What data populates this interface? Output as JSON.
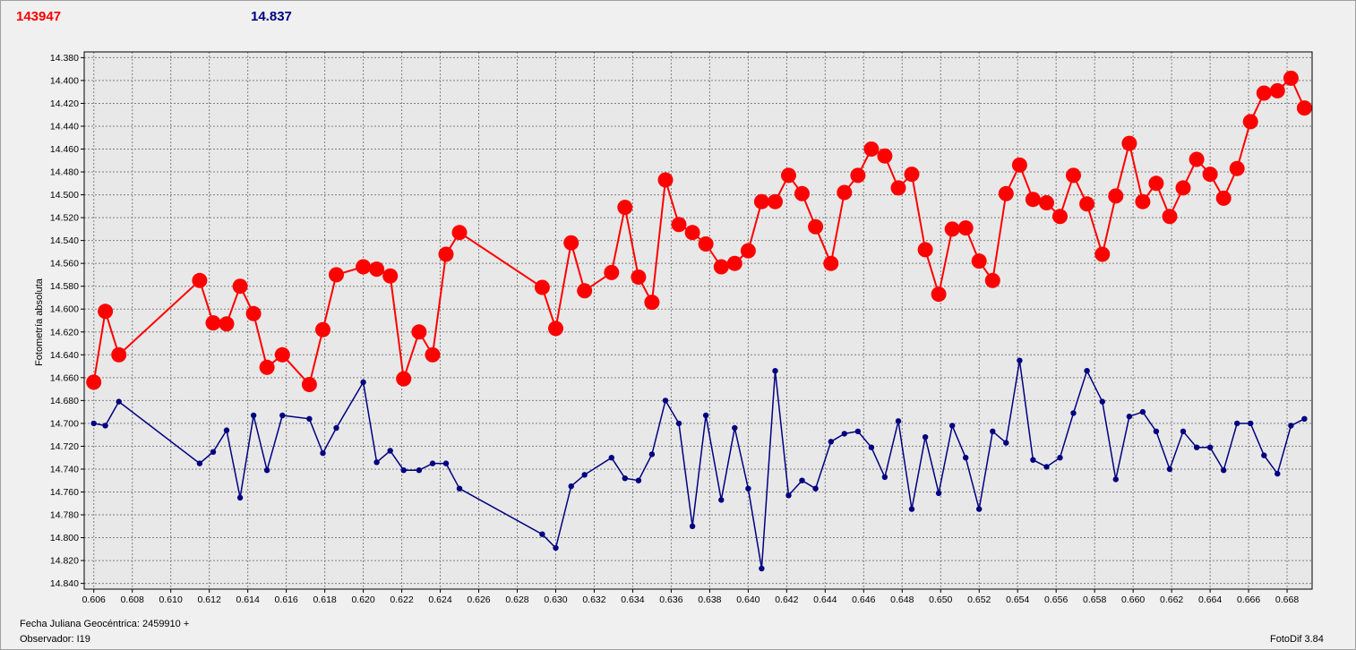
{
  "header": {
    "star_id": "143947",
    "comparison_value": "14.837"
  },
  "footer": {
    "julian_label": "Fecha Juliana Geocéntrica: 2459910 +",
    "observer_label": "Observador: I19",
    "version_label": "FotoDif 3.84"
  },
  "colors": {
    "target": "#ff0000",
    "comparison": "#000080",
    "grid": "#808080",
    "plot_bg": "#e8e8e8"
  },
  "chart_data": {
    "type": "line",
    "ylabel": "Fotometría absoluta",
    "xlabel": "Fecha Juliana Geocéntrica: 2459910 +",
    "xlim": [
      0.6055,
      0.6693
    ],
    "ylim": [
      14.845,
      14.375
    ],
    "y_inverted": true,
    "grid": true,
    "x_ticks": [
      "0.606",
      "0.608",
      "0.610",
      "0.612",
      "0.614",
      "0.616",
      "0.618",
      "0.620",
      "0.622",
      "0.624",
      "0.626",
      "0.628",
      "0.630",
      "0.632",
      "0.634",
      "0.636",
      "0.638",
      "0.640",
      "0.642",
      "0.644",
      "0.646",
      "0.648",
      "0.650",
      "0.652",
      "0.654",
      "0.656",
      "0.658",
      "0.660",
      "0.662",
      "0.664",
      "0.666",
      "0.668"
    ],
    "y_ticks": [
      "14.380",
      "14.400",
      "14.420",
      "14.440",
      "14.460",
      "14.480",
      "14.500",
      "14.520",
      "14.540",
      "14.560",
      "14.580",
      "14.600",
      "14.620",
      "14.640",
      "14.660",
      "14.680",
      "14.700",
      "14.720",
      "14.740",
      "14.760",
      "14.780",
      "14.800",
      "14.820",
      "14.840"
    ],
    "x": [
      0.606,
      0.6066,
      0.6073,
      0.6115,
      0.6122,
      0.6129,
      0.6136,
      0.6143,
      0.615,
      0.6158,
      0.6172,
      0.6179,
      0.6186,
      0.62,
      0.6207,
      0.6214,
      0.6221,
      0.6229,
      0.6236,
      0.6243,
      0.625,
      0.6293,
      0.63,
      0.6308,
      0.6315,
      0.6329,
      0.6336,
      0.6343,
      0.635,
      0.6357,
      0.6364,
      0.6371,
      0.6378,
      0.6386,
      0.6393,
      0.64,
      0.6407,
      0.6414,
      0.6421,
      0.6428,
      0.6435,
      0.6443,
      0.645,
      0.6457,
      0.6464,
      0.6471,
      0.6478,
      0.6485,
      0.6492,
      0.6499,
      0.6506,
      0.6513,
      0.652,
      0.6527,
      0.6534,
      0.6541,
      0.6548,
      0.6555,
      0.6562,
      0.6569,
      0.6576,
      0.6584,
      0.6591,
      0.6598,
      0.6605,
      0.6612,
      0.6619,
      0.6626,
      0.6633,
      0.664,
      0.6647,
      0.6654,
      0.6661,
      0.6668,
      0.6675,
      0.6682,
      0.6689
    ],
    "series": [
      {
        "name": "143947",
        "color": "#ff0000",
        "marker": "large-circle",
        "values": [
          14.664,
          14.602,
          14.64,
          14.575,
          14.612,
          14.613,
          14.58,
          14.604,
          14.651,
          14.64,
          14.666,
          14.618,
          14.57,
          14.563,
          14.565,
          14.571,
          14.661,
          14.62,
          14.64,
          14.552,
          14.533,
          14.581,
          14.617,
          14.542,
          14.584,
          14.568,
          14.511,
          14.572,
          14.594,
          14.487,
          14.526,
          14.533,
          14.543,
          14.563,
          14.56,
          14.549,
          14.506,
          14.506,
          14.483,
          14.499,
          14.528,
          14.56,
          14.498,
          14.483,
          14.46,
          14.466,
          14.494,
          14.482,
          14.548,
          14.587,
          14.53,
          14.529,
          14.558,
          14.575,
          14.499,
          14.474,
          14.504,
          14.507,
          14.519,
          14.483,
          14.508,
          14.552,
          14.501,
          14.455,
          14.506,
          14.49,
          14.519,
          14.494,
          14.469,
          14.482,
          14.503,
          14.477,
          14.436,
          14.411,
          14.409,
          14.398,
          14.424
        ]
      },
      {
        "name": "14.837",
        "color": "#000080",
        "marker": "small-dot",
        "values": [
          14.7,
          14.702,
          14.681,
          14.735,
          14.725,
          14.706,
          14.765,
          14.693,
          14.741,
          14.693,
          14.696,
          14.726,
          14.704,
          14.664,
          14.734,
          14.724,
          14.741,
          14.741,
          14.735,
          14.735,
          14.757,
          14.797,
          14.809,
          14.755,
          14.745,
          14.73,
          14.748,
          14.75,
          14.727,
          14.68,
          14.7,
          14.79,
          14.693,
          14.767,
          14.704,
          14.757,
          14.827,
          14.654,
          14.763,
          14.75,
          14.757,
          14.716,
          14.709,
          14.707,
          14.721,
          14.747,
          14.698,
          14.775,
          14.712,
          14.761,
          14.702,
          14.73,
          14.775,
          14.707,
          14.717,
          14.645,
          14.732,
          14.738,
          14.73,
          14.691,
          14.654,
          14.681,
          14.749,
          14.694,
          14.69,
          14.707,
          14.74,
          14.707,
          14.721,
          14.721,
          14.741,
          14.7,
          14.7,
          14.728,
          14.744,
          14.702,
          14.696
        ]
      }
    ]
  }
}
